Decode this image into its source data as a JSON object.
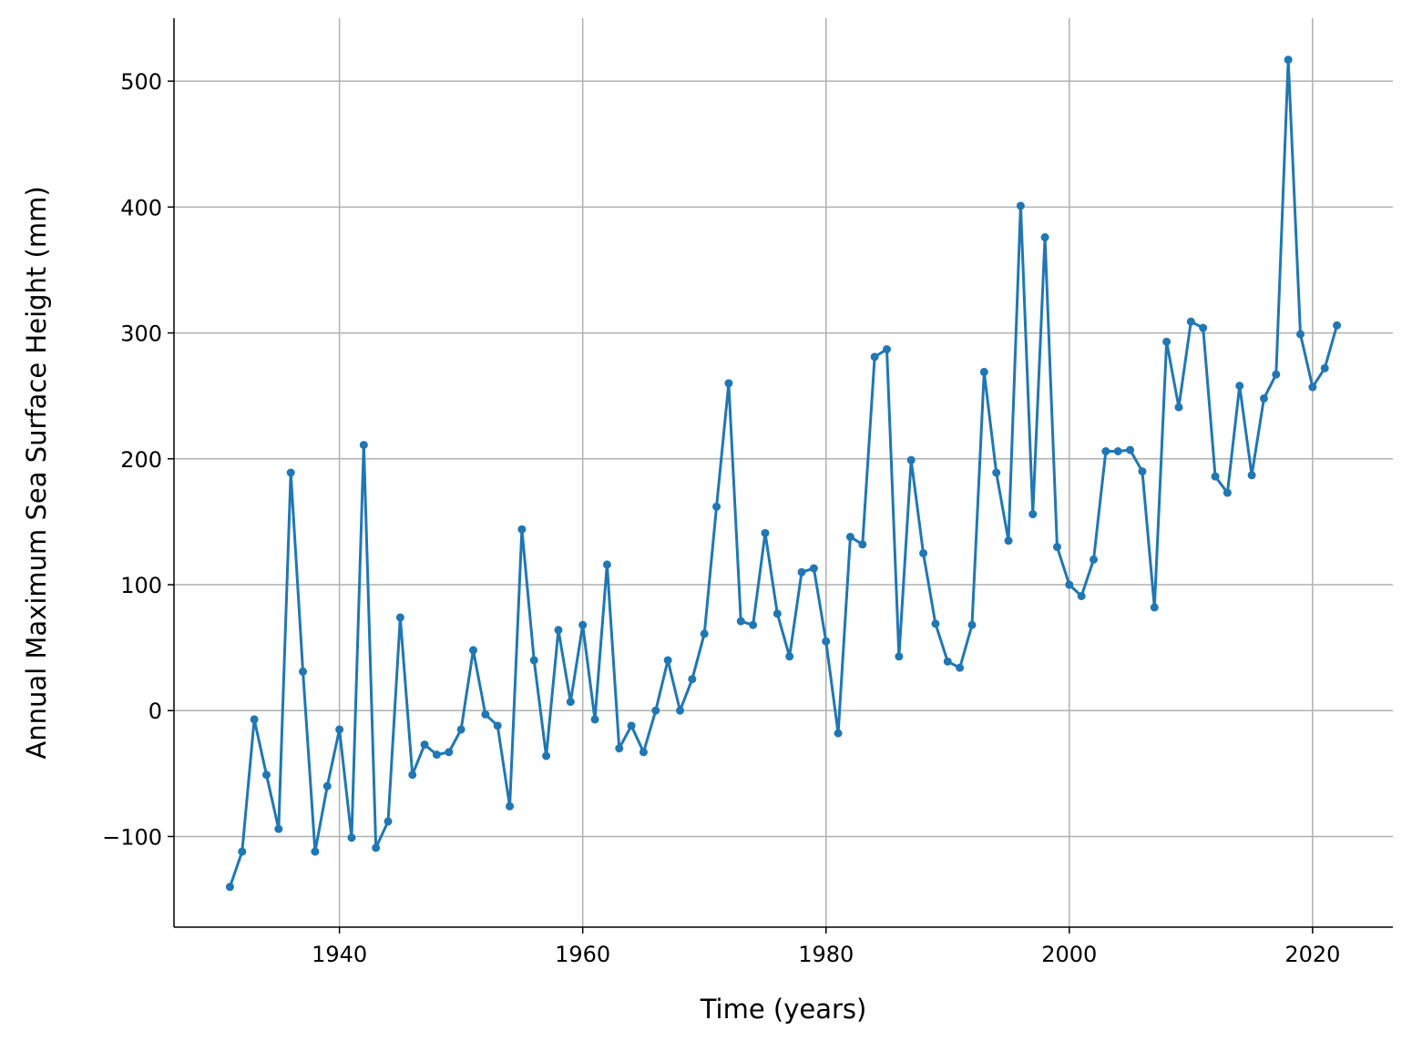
{
  "chart_data": {
    "type": "line",
    "x_label": "Time (years)",
    "y_label": "Annual Maximum Sea Surface Height (mm)",
    "x": [
      1931,
      1932,
      1933,
      1934,
      1935,
      1936,
      1937,
      1938,
      1939,
      1940,
      1941,
      1942,
      1943,
      1944,
      1945,
      1946,
      1947,
      1948,
      1949,
      1950,
      1951,
      1952,
      1953,
      1954,
      1955,
      1956,
      1957,
      1958,
      1959,
      1960,
      1961,
      1962,
      1963,
      1964,
      1965,
      1966,
      1967,
      1968,
      1969,
      1970,
      1971,
      1972,
      1973,
      1974,
      1975,
      1976,
      1977,
      1978,
      1979,
      1980,
      1981,
      1982,
      1983,
      1984,
      1985,
      1986,
      1987,
      1988,
      1989,
      1990,
      1991,
      1992,
      1993,
      1994,
      1995,
      1996,
      1997,
      1998,
      1999,
      2000,
      2001,
      2002,
      2003,
      2004,
      2005,
      2006,
      2007,
      2008,
      2009,
      2010,
      2011,
      2012,
      2013,
      2014,
      2015,
      2016,
      2017,
      2018,
      2019,
      2020,
      2021,
      2022
    ],
    "values": [
      -140,
      -112,
      -7,
      -51,
      -94,
      189,
      31,
      -112,
      -60,
      -15,
      -101,
      211,
      -109,
      -88,
      74,
      -51,
      -27,
      -35,
      -33,
      -15,
      48,
      -3,
      -12,
      -76,
      144,
      40,
      -36,
      64,
      7,
      68,
      -7,
      116,
      -30,
      -12,
      -33,
      0,
      40,
      0,
      25,
      61,
      162,
      260,
      71,
      68,
      141,
      77,
      43,
      110,
      113,
      55,
      -18,
      138,
      132,
      281,
      287,
      43,
      199,
      125,
      69,
      39,
      34,
      68,
      269,
      189,
      135,
      401,
      156,
      376,
      130,
      100,
      91,
      120,
      206,
      206,
      207,
      190,
      82,
      293,
      241,
      309,
      304,
      186,
      173,
      258,
      187,
      248,
      267,
      517,
      299,
      257,
      272,
      306
    ],
    "color": "#1f77b4",
    "xlim": [
      1926.4,
      2026.6
    ],
    "ylim": [
      -172,
      550
    ],
    "xticks": [
      1940,
      1960,
      1980,
      2000,
      2020
    ],
    "yticks": [
      {
        "value": -100,
        "label": "−100"
      },
      0,
      100,
      200,
      300,
      400,
      500
    ],
    "grid": true
  }
}
